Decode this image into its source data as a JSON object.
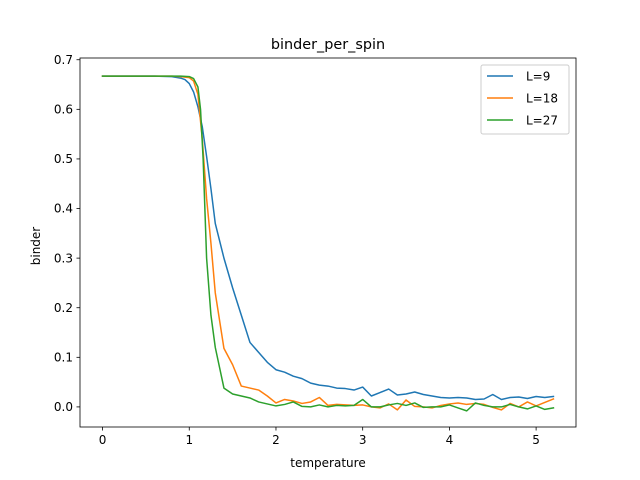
{
  "chart_data": {
    "type": "line",
    "title": "binder_per_spin",
    "xlabel": "temperature",
    "ylabel": "binder",
    "xlim": [
      -0.26,
      5.46
    ],
    "ylim": [
      -0.0405,
      0.7035
    ],
    "xticks": [
      0,
      1,
      2,
      3,
      4,
      5
    ],
    "yticks": [
      0.0,
      0.1,
      0.2,
      0.3,
      0.4,
      0.5,
      0.6,
      0.7
    ],
    "ytick_labels": [
      "0.0",
      "0.1",
      "0.2",
      "0.3",
      "0.4",
      "0.5",
      "0.6",
      "0.7"
    ],
    "grid": false,
    "legend_position": "upper right",
    "series": [
      {
        "name": "L=9",
        "color": "#1f77b4",
        "x": [
          0.0,
          0.2,
          0.4,
          0.6,
          0.8,
          0.9,
          0.95,
          1.0,
          1.05,
          1.1,
          1.15,
          1.2,
          1.25,
          1.3,
          1.4,
          1.5,
          1.6,
          1.7,
          1.8,
          1.9,
          2.0,
          2.1,
          2.2,
          2.3,
          2.4,
          2.5,
          2.6,
          2.7,
          2.8,
          2.9,
          3.0,
          3.1,
          3.2,
          3.3,
          3.4,
          3.5,
          3.6,
          3.7,
          3.8,
          3.9,
          4.0,
          4.1,
          4.2,
          4.3,
          4.4,
          4.5,
          4.6,
          4.7,
          4.8,
          4.9,
          5.0,
          5.1,
          5.2
        ],
        "values": [
          0.667,
          0.667,
          0.667,
          0.667,
          0.666,
          0.663,
          0.66,
          0.652,
          0.635,
          0.605,
          0.565,
          0.505,
          0.44,
          0.37,
          0.3,
          0.24,
          0.185,
          0.13,
          0.11,
          0.09,
          0.075,
          0.07,
          0.062,
          0.057,
          0.048,
          0.044,
          0.042,
          0.038,
          0.037,
          0.034,
          0.04,
          0.022,
          0.029,
          0.036,
          0.024,
          0.026,
          0.03,
          0.025,
          0.022,
          0.019,
          0.018,
          0.019,
          0.018,
          0.015,
          0.016,
          0.025,
          0.015,
          0.019,
          0.02,
          0.017,
          0.021,
          0.019,
          0.021
        ]
      },
      {
        "name": "L=18",
        "color": "#ff7f0e",
        "x": [
          0.0,
          0.2,
          0.4,
          0.6,
          0.8,
          0.9,
          1.0,
          1.05,
          1.1,
          1.15,
          1.2,
          1.25,
          1.3,
          1.4,
          1.5,
          1.6,
          1.7,
          1.8,
          1.9,
          2.0,
          2.1,
          2.2,
          2.3,
          2.4,
          2.5,
          2.6,
          2.7,
          2.8,
          2.9,
          3.0,
          3.1,
          3.2,
          3.3,
          3.4,
          3.5,
          3.6,
          3.7,
          3.8,
          3.9,
          4.0,
          4.1,
          4.2,
          4.3,
          4.4,
          4.5,
          4.6,
          4.7,
          4.8,
          4.9,
          5.0,
          5.1,
          5.2
        ],
        "values": [
          0.667,
          0.667,
          0.667,
          0.667,
          0.667,
          0.666,
          0.664,
          0.657,
          0.63,
          0.54,
          0.42,
          0.33,
          0.23,
          0.118,
          0.085,
          0.042,
          0.038,
          0.034,
          0.022,
          0.008,
          0.015,
          0.012,
          0.007,
          0.01,
          0.019,
          0.003,
          0.005,
          0.004,
          0.003,
          0.004,
          0.0,
          -0.002,
          0.006,
          -0.006,
          0.014,
          0.001,
          0.0,
          -0.002,
          0.003,
          0.006,
          0.008,
          0.005,
          0.007,
          0.005,
          -0.001,
          -0.006,
          0.007,
          0.0,
          0.01,
          0.002,
          0.009,
          0.016
        ]
      },
      {
        "name": "L=27",
        "color": "#2ca02c",
        "x": [
          0.0,
          0.2,
          0.4,
          0.6,
          0.8,
          0.9,
          1.0,
          1.05,
          1.1,
          1.13,
          1.16,
          1.2,
          1.25,
          1.3,
          1.4,
          1.5,
          1.6,
          1.7,
          1.8,
          1.9,
          2.0,
          2.1,
          2.2,
          2.3,
          2.4,
          2.5,
          2.6,
          2.7,
          2.8,
          2.9,
          3.0,
          3.1,
          3.2,
          3.3,
          3.4,
          3.5,
          3.6,
          3.7,
          3.8,
          3.9,
          4.0,
          4.1,
          4.2,
          4.3,
          4.4,
          4.5,
          4.6,
          4.7,
          4.8,
          4.9,
          5.0,
          5.1,
          5.2
        ],
        "values": [
          0.667,
          0.667,
          0.667,
          0.667,
          0.667,
          0.667,
          0.666,
          0.662,
          0.645,
          0.6,
          0.5,
          0.3,
          0.185,
          0.12,
          0.038,
          0.026,
          0.022,
          0.018,
          0.01,
          0.006,
          0.002,
          0.005,
          0.01,
          0.001,
          0.0,
          0.004,
          0.0,
          0.003,
          0.002,
          0.003,
          0.015,
          0.0,
          0.0,
          0.004,
          0.007,
          0.003,
          0.008,
          -0.001,
          0.0,
          0.0,
          0.004,
          -0.002,
          -0.008,
          0.008,
          0.003,
          0.0,
          0.0,
          0.005,
          0.0,
          -0.004,
          0.002,
          -0.005,
          -0.002
        ]
      }
    ]
  }
}
